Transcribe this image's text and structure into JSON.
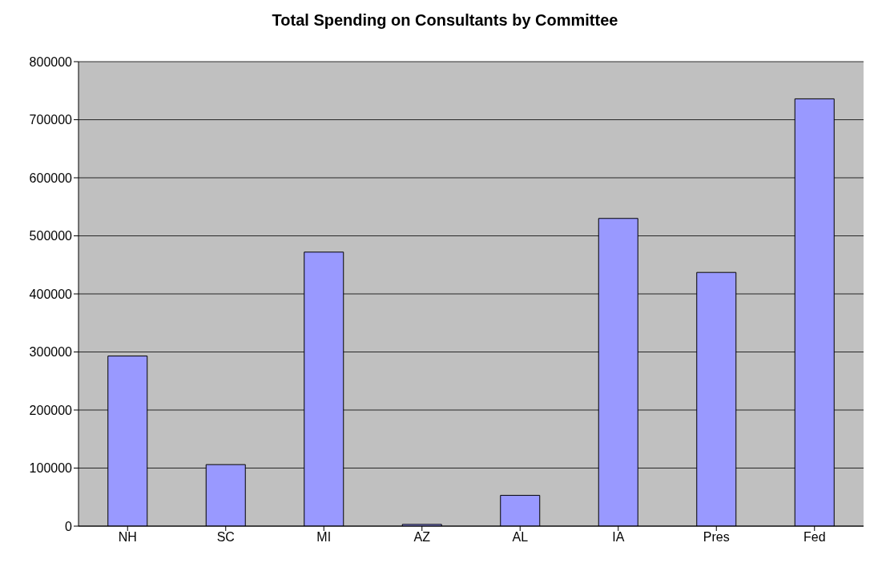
{
  "chart_data": {
    "type": "bar",
    "title": "Total Spending on Consultants by Committee",
    "categories": [
      "NH",
      "SC",
      "MI",
      "AZ",
      "AL",
      "IA",
      "Pres",
      "Fed"
    ],
    "values": [
      293000,
      106000,
      472000,
      3000,
      53000,
      530000,
      437000,
      736000
    ],
    "color": "#9999ff",
    "ylim": [
      0,
      800000
    ],
    "yticks": [
      0,
      100000,
      200000,
      300000,
      400000,
      500000,
      600000,
      700000,
      800000
    ],
    "grid": "y"
  }
}
